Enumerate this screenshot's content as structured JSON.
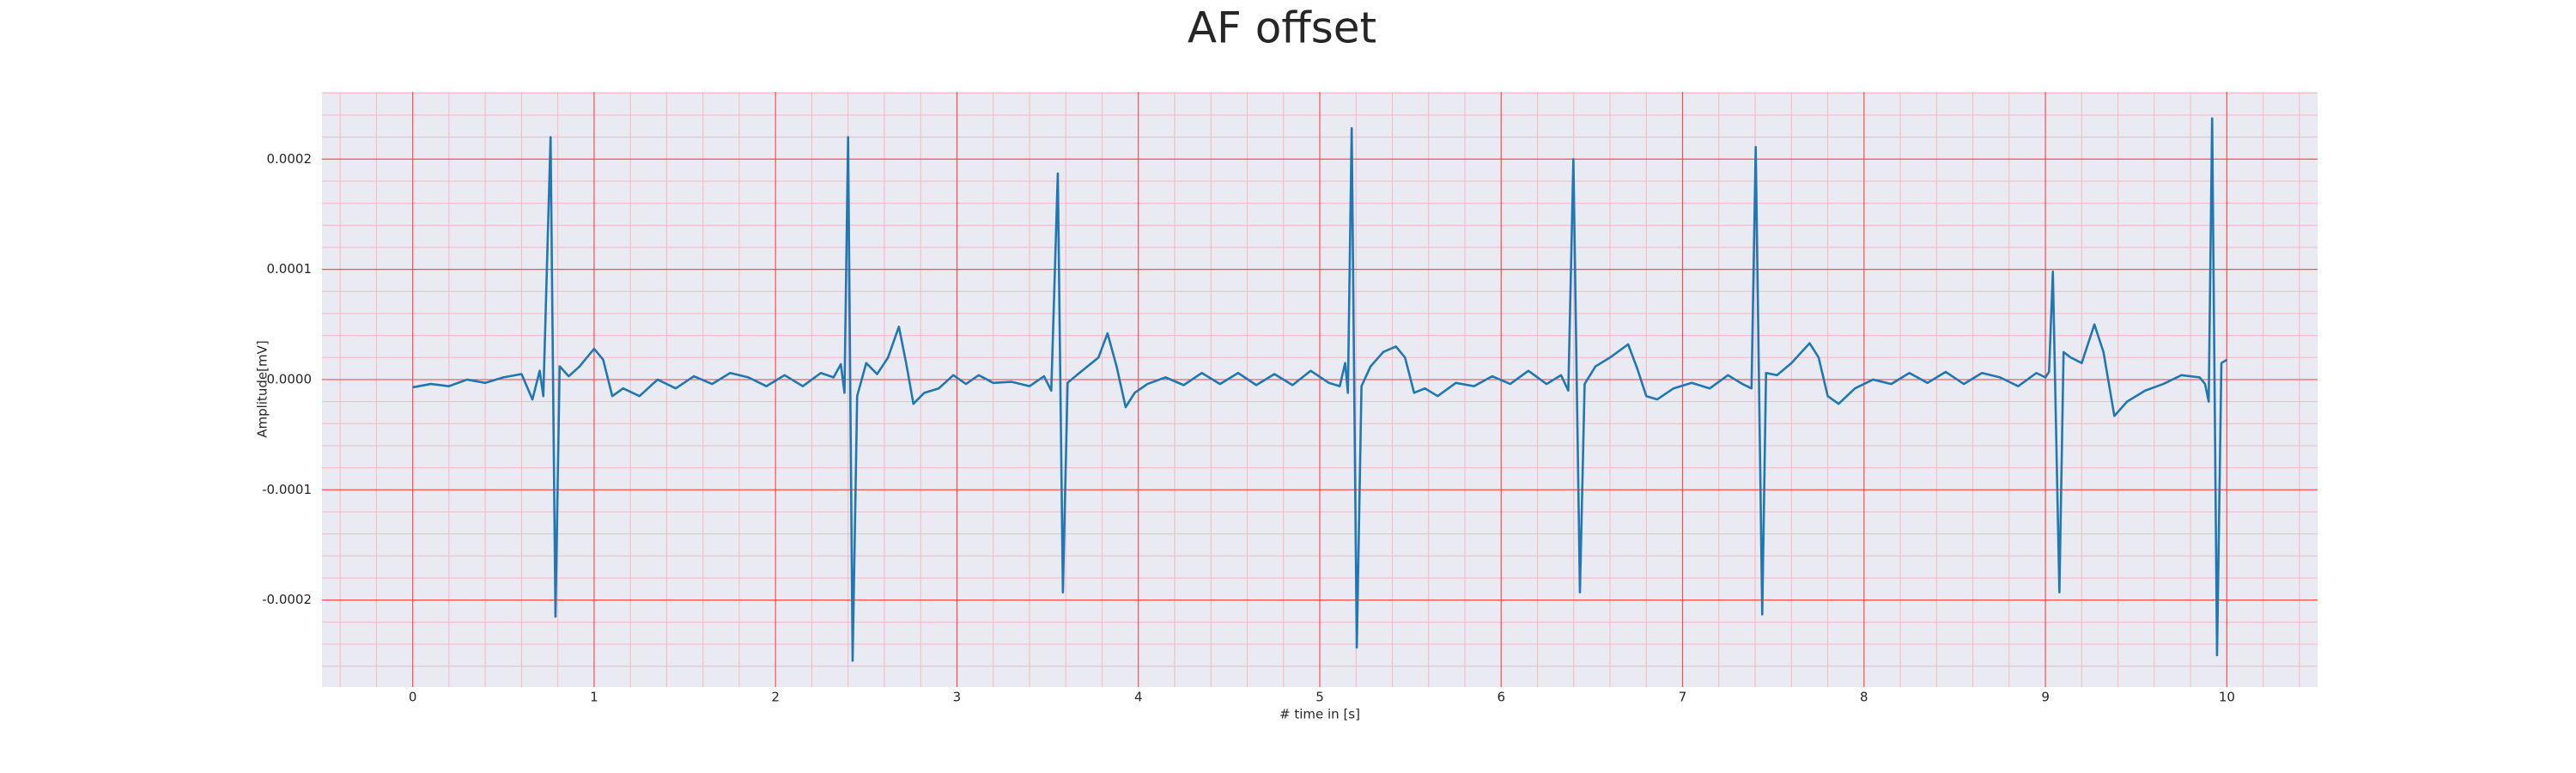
{
  "chart_data": {
    "type": "line",
    "title": "AF offset",
    "xlabel": "# time in [s]",
    "ylabel": "Amplitude[mV]",
    "xlim": [
      -0.5,
      10.5
    ],
    "ylim": [
      -0.000279,
      0.000261
    ],
    "xticks": [
      0,
      1,
      2,
      3,
      4,
      5,
      6,
      7,
      8,
      9,
      10
    ],
    "yticks": [
      {
        "value": -0.0002,
        "label": "-0.0002"
      },
      {
        "value": -0.0001,
        "label": "-0.0001"
      },
      {
        "value": 0,
        "label": "0.0000"
      },
      {
        "value": 0.0001,
        "label": "0.0001"
      },
      {
        "value": 0.0002,
        "label": "0.0002"
      }
    ],
    "grid": true,
    "grid_color": "#ff4d4d",
    "minor_grid_color": "#f7b6c2",
    "minor_divisions": 5,
    "background": "#eaeaf2",
    "series": [
      {
        "color": "#1f77b4",
        "x": [
          0.0,
          0.1,
          0.2,
          0.3,
          0.4,
          0.5,
          0.6,
          0.66,
          0.7,
          0.72,
          0.76,
          0.787,
          0.81,
          0.86,
          0.92,
          1.0,
          1.05,
          1.1,
          1.16,
          1.25,
          1.35,
          1.45,
          1.55,
          1.65,
          1.75,
          1.85,
          1.95,
          2.05,
          2.15,
          2.25,
          2.32,
          2.36,
          2.38,
          2.4,
          2.425,
          2.45,
          2.5,
          2.56,
          2.62,
          2.68,
          2.72,
          2.76,
          2.82,
          2.9,
          2.98,
          3.05,
          3.12,
          3.2,
          3.3,
          3.4,
          3.48,
          3.52,
          3.556,
          3.584,
          3.61,
          3.66,
          3.72,
          3.78,
          3.83,
          3.88,
          3.93,
          3.98,
          4.05,
          4.15,
          4.25,
          4.35,
          4.45,
          4.55,
          4.65,
          4.75,
          4.85,
          4.95,
          5.05,
          5.11,
          5.14,
          5.155,
          5.176,
          5.204,
          5.23,
          5.28,
          5.35,
          5.42,
          5.47,
          5.52,
          5.58,
          5.65,
          5.75,
          5.85,
          5.95,
          6.05,
          6.15,
          6.25,
          6.33,
          6.37,
          6.398,
          6.434,
          6.46,
          6.52,
          6.6,
          6.7,
          6.75,
          6.8,
          6.86,
          6.95,
          7.05,
          7.15,
          7.25,
          7.33,
          7.38,
          7.403,
          7.439,
          7.46,
          7.52,
          7.6,
          7.7,
          7.75,
          7.8,
          7.86,
          7.95,
          8.05,
          8.15,
          8.25,
          8.35,
          8.45,
          8.55,
          8.65,
          8.75,
          8.85,
          8.95,
          9.0,
          9.02,
          9.041,
          9.077,
          9.1,
          9.14,
          9.2,
          9.27,
          9.32,
          9.38,
          9.45,
          9.55,
          9.65,
          9.75,
          9.85,
          9.88,
          9.9,
          9.919,
          9.946,
          9.97,
          10.0
        ],
        "values": [
          -7e-06,
          -4e-06,
          -6e-06,
          0.0,
          -3e-06,
          2e-06,
          5e-06,
          -1.8e-05,
          8e-06,
          -1.5e-05,
          0.00022,
          -0.000215,
          1.2e-05,
          3e-06,
          1.2e-05,
          2.8e-05,
          1.8e-05,
          -1.5e-05,
          -8e-06,
          -1.5e-05,
          0.0,
          -8e-06,
          3e-06,
          -4e-06,
          6e-06,
          2e-06,
          -6e-06,
          4e-06,
          -6e-06,
          6e-06,
          2e-06,
          1.4e-05,
          -1.2e-05,
          0.00022,
          -0.000255,
          -1.5e-05,
          1.5e-05,
          5e-06,
          2e-05,
          4.8e-05,
          1.5e-05,
          -2.2e-05,
          -1.2e-05,
          -8e-06,
          4e-06,
          -4e-06,
          4e-06,
          -3e-06,
          -2e-06,
          -6e-06,
          3e-06,
          -1e-05,
          0.000187,
          -0.000193,
          -3e-06,
          4e-06,
          1.2e-05,
          2e-05,
          4.2e-05,
          1.2e-05,
          -2.5e-05,
          -1.2e-05,
          -4e-06,
          2e-06,
          -5e-06,
          6e-06,
          -4e-06,
          6e-06,
          -5e-06,
          5e-06,
          -5e-06,
          8e-06,
          -3e-06,
          -6e-06,
          1.5e-05,
          -1.2e-05,
          0.000228,
          -0.000243,
          -6e-06,
          1.2e-05,
          2.5e-05,
          3e-05,
          2e-05,
          -1.2e-05,
          -8e-06,
          -1.5e-05,
          -3e-06,
          -6e-06,
          3e-06,
          -4e-06,
          8e-06,
          -4e-06,
          4e-06,
          -1e-05,
          0.0002,
          -0.000193,
          -4e-06,
          1.2e-05,
          2e-05,
          3.2e-05,
          1e-05,
          -1.5e-05,
          -1.8e-05,
          -8e-06,
          -3e-06,
          -8e-06,
          4e-06,
          -4e-06,
          -8e-06,
          0.000211,
          -0.000213,
          6e-06,
          4e-06,
          1.5e-05,
          3.3e-05,
          2e-05,
          -1.5e-05,
          -2.2e-05,
          -8e-06,
          0.0,
          -4e-06,
          6e-06,
          -3e-06,
          7e-06,
          -4e-06,
          6e-06,
          2e-06,
          -6e-06,
          6e-06,
          2e-06,
          7e-06,
          9.8e-05,
          -0.000193,
          2.5e-05,
          2e-05,
          1.5e-05,
          5e-05,
          2.5e-05,
          -3.3e-05,
          -2e-05,
          -1e-05,
          -4e-06,
          4e-06,
          2e-06,
          -4e-06,
          -2e-05,
          0.000237,
          -0.00025,
          1.5e-05,
          1.8e-05
        ]
      }
    ]
  }
}
